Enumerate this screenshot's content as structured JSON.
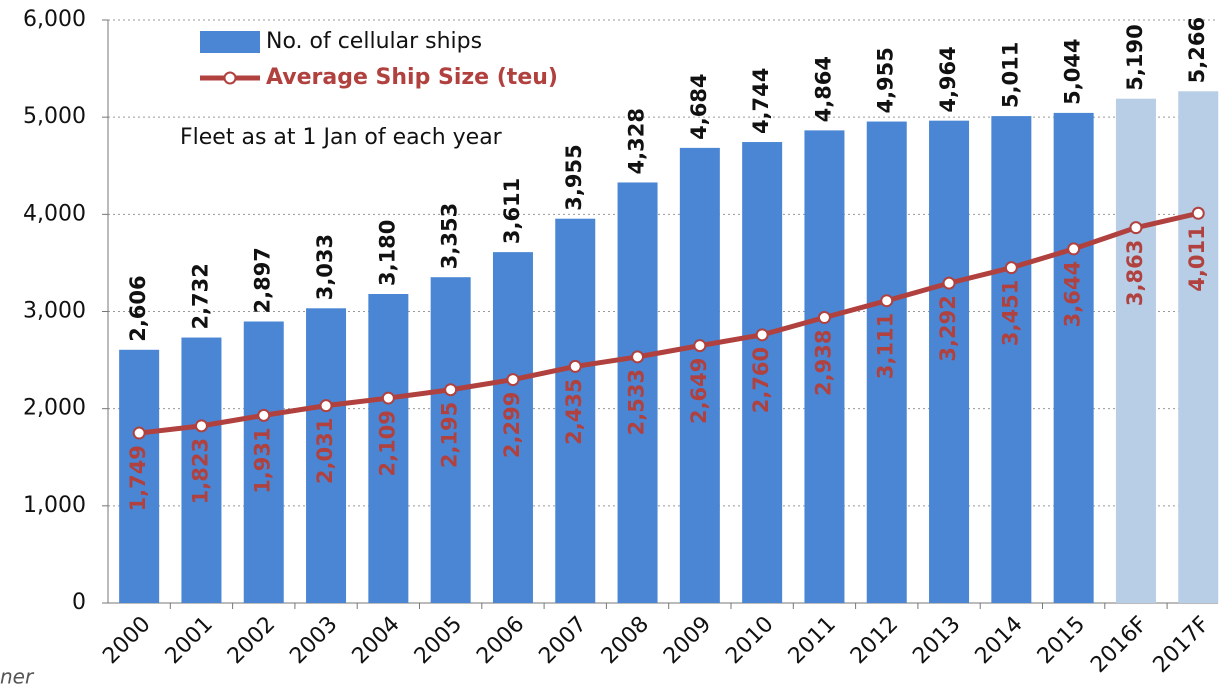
{
  "chart_data": {
    "type": "bar",
    "annotation": "Fleet as at 1 Jan of each year",
    "source": "ner",
    "categories": [
      "2000",
      "2001",
      "2002",
      "2003",
      "2004",
      "2005",
      "2006",
      "2007",
      "2008",
      "2009",
      "2010",
      "2011",
      "2012",
      "2013",
      "2014",
      "2015",
      "2016F",
      "2017F"
    ],
    "series": [
      {
        "name": "No. of cellular ships",
        "type": "bar",
        "color": "#4a86d4",
        "colors": [
          "#4a86d4",
          "#4a86d4",
          "#4a86d4",
          "#4a86d4",
          "#4a86d4",
          "#4a86d4",
          "#4a86d4",
          "#4a86d4",
          "#4a86d4",
          "#4a86d4",
          "#4a86d4",
          "#4a86d4",
          "#4a86d4",
          "#4a86d4",
          "#4a86d4",
          "#4a86d4",
          "#b8cde6",
          "#b8cde6"
        ],
        "label_color": "#111111",
        "values": [
          2606,
          2732,
          2897,
          3033,
          3180,
          3353,
          3611,
          3955,
          4328,
          4684,
          4744,
          4864,
          4955,
          4964,
          5011,
          5044,
          5190,
          5266
        ],
        "value_labels": [
          "2,606",
          "2,732",
          "2,897",
          "3,033",
          "3,180",
          "3,353",
          "3,611",
          "3,955",
          "4,328",
          "4,684",
          "4,744",
          "4,864",
          "4,955",
          "4,964",
          "5,011",
          "5,044",
          "5,190",
          "5,266"
        ]
      },
      {
        "name": "Average Ship Size (teu)",
        "type": "line",
        "color": "#b0413e",
        "label_color": "#b0413e",
        "values": [
          1749,
          1823,
          1931,
          2031,
          2109,
          2195,
          2299,
          2435,
          2533,
          2649,
          2760,
          2938,
          3111,
          3292,
          3451,
          3644,
          3863,
          4011
        ],
        "value_labels": [
          "1,749",
          "1,823",
          "1,931",
          "2,031",
          "2,109",
          "2,195",
          "2,299",
          "2,435",
          "2,533",
          "2,649",
          "2,760",
          "2,938",
          "3,111",
          "3,292",
          "3,451",
          "3,644",
          "3,863",
          "4,011"
        ]
      }
    ],
    "ylim": [
      0,
      6000
    ],
    "yticks": [
      0,
      {
        "value": 1000,
        "label": "1,000"
      },
      {
        "value": 2000,
        "label": "2,000"
      },
      {
        "value": 3000,
        "label": "3,000"
      },
      {
        "value": 4000,
        "label": "4,000"
      },
      {
        "value": 5000,
        "label": "5,000"
      },
      {
        "value": 6000,
        "label": "6,000"
      }
    ],
    "grid": true
  }
}
